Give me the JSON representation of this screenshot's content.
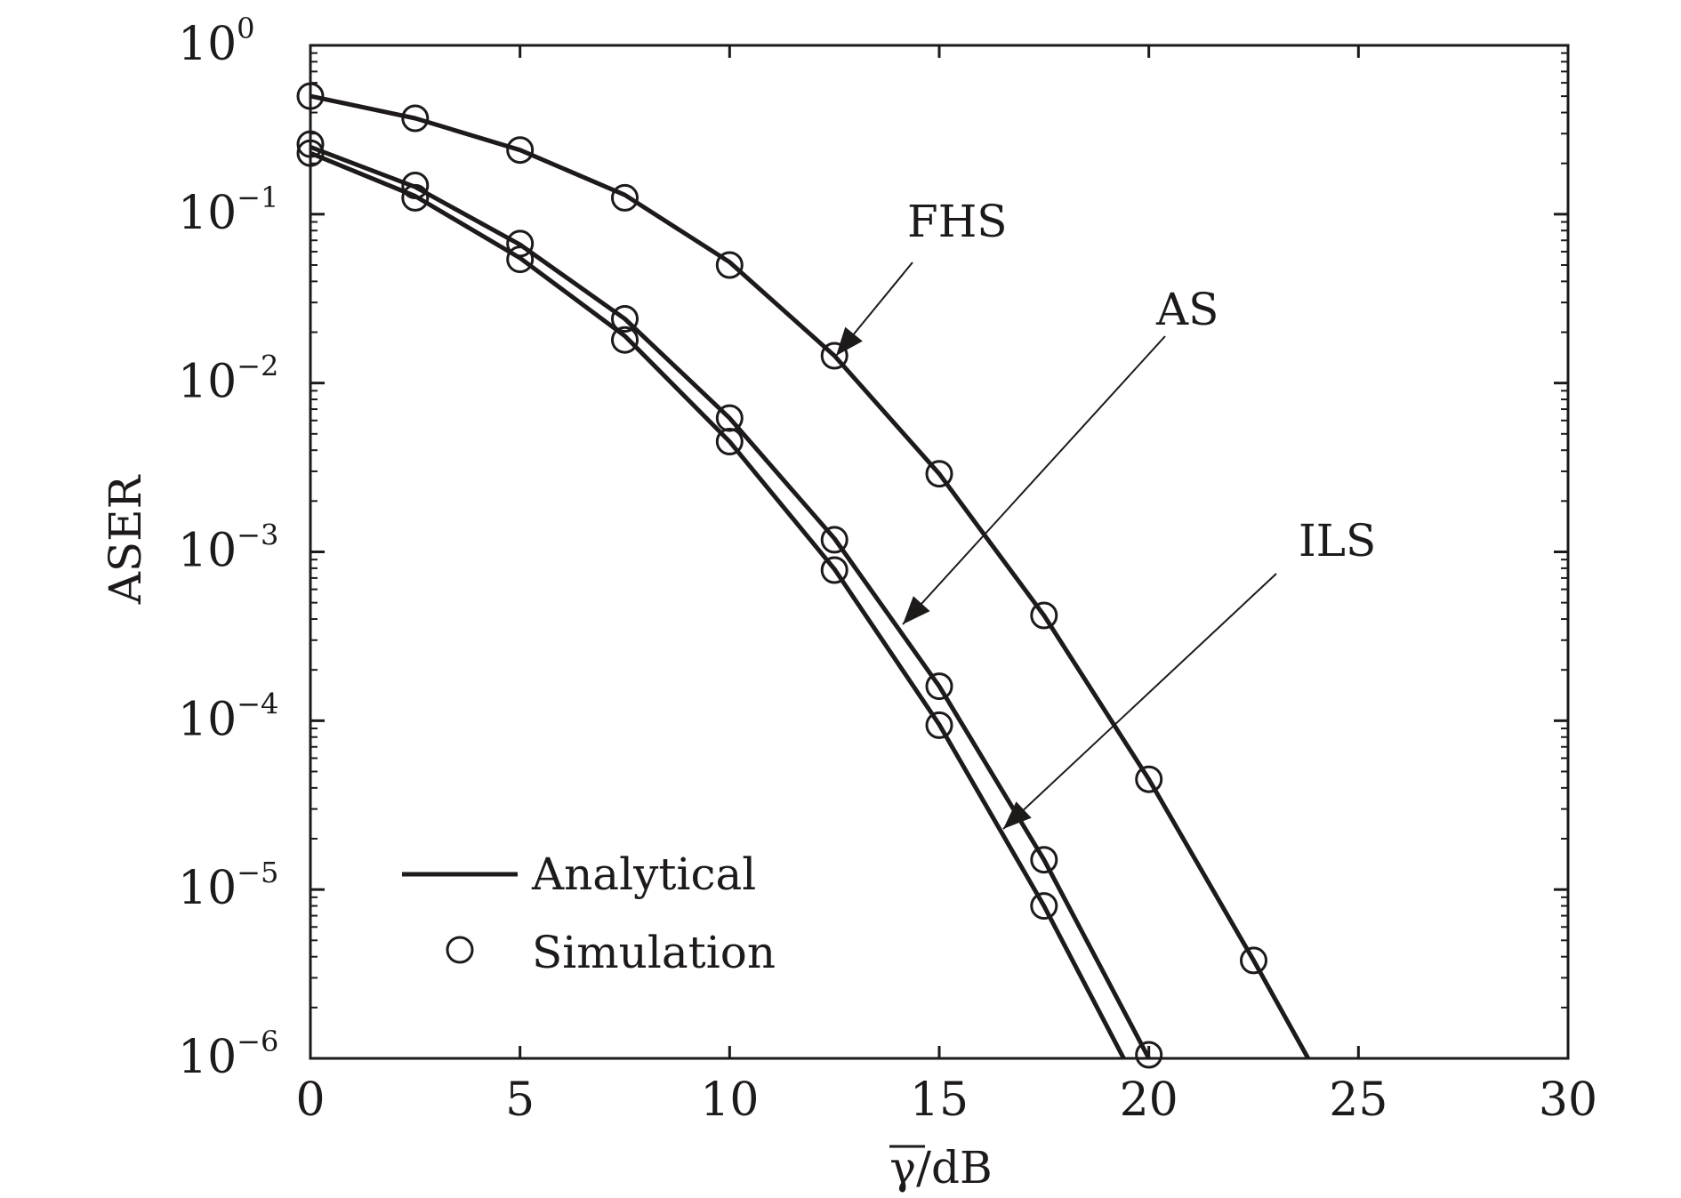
{
  "chart_data": {
    "type": "line",
    "xlabel": "γ/dB",
    "ylabel": "ASER",
    "xlim": [
      0,
      30
    ],
    "ylim": [
      1e-06,
      1
    ],
    "yscale": "log",
    "grid": false,
    "x_ticks": [
      "0",
      "5",
      "10",
      "15",
      "20",
      "25",
      "30"
    ],
    "y_ticks": [
      {
        "base": "10",
        "exp": "0"
      },
      {
        "base": "10",
        "exp": "−1"
      },
      {
        "base": "10",
        "exp": "−2"
      },
      {
        "base": "10",
        "exp": "−3"
      },
      {
        "base": "10",
        "exp": "−4"
      },
      {
        "base": "10",
        "exp": "−5"
      },
      {
        "base": "10",
        "exp": "−6"
      }
    ],
    "legend": {
      "position": "bottom-left",
      "entries": [
        {
          "label": "Analytical",
          "marker": "line"
        },
        {
          "label": "Simulation",
          "marker": "circle"
        }
      ]
    },
    "annotations": [
      {
        "text": "FHS",
        "series": "FHS"
      },
      {
        "text": "AS",
        "series": "AS"
      },
      {
        "text": "ILS",
        "series": "ILS"
      }
    ],
    "series": [
      {
        "name": "FHS",
        "analytical": {
          "x": [
            0,
            2.5,
            5,
            7.5,
            10,
            12.5,
            15,
            17.5,
            20,
            22.5,
            23.8
          ],
          "y": [
            0.5,
            0.37,
            0.24,
            0.13,
            0.052,
            0.0145,
            0.0029,
            0.00042,
            4.5e-05,
            3.8e-06,
            1e-06
          ]
        },
        "simulation": {
          "x": [
            0,
            2.5,
            5,
            7.5,
            10,
            12.5,
            15,
            17.5,
            20,
            22.5
          ],
          "y": [
            0.5,
            0.37,
            0.24,
            0.125,
            0.05,
            0.0145,
            0.0029,
            0.00042,
            4.5e-05,
            3.8e-06
          ]
        }
      },
      {
        "name": "AS",
        "analytical": {
          "x": [
            0,
            2.5,
            5,
            7.5,
            10,
            12.5,
            15,
            17.5,
            20
          ],
          "y": [
            0.25,
            0.145,
            0.066,
            0.024,
            0.0062,
            0.0012,
            0.00016,
            1.5e-05,
            1e-06
          ]
        },
        "simulation": {
          "x": [
            0,
            2.5,
            5,
            7.5,
            10,
            12.5,
            15,
            17.5,
            20
          ],
          "y": [
            0.26,
            0.148,
            0.067,
            0.024,
            0.0062,
            0.00118,
            0.00016,
            1.5e-05,
            1.05e-06
          ]
        }
      },
      {
        "name": "ILS",
        "analytical": {
          "x": [
            0,
            2.5,
            5,
            7.5,
            10,
            12.5,
            15,
            17.5,
            19.4
          ],
          "y": [
            0.23,
            0.128,
            0.055,
            0.019,
            0.0045,
            0.00079,
            9.5e-05,
            8e-06,
            1e-06
          ]
        },
        "simulation": {
          "x": [
            0,
            2.5,
            5,
            7.5,
            10,
            12.5,
            15,
            17.5
          ],
          "y": [
            0.23,
            0.125,
            0.054,
            0.018,
            0.0045,
            0.00078,
            9.4e-05,
            8e-06
          ]
        }
      }
    ]
  }
}
